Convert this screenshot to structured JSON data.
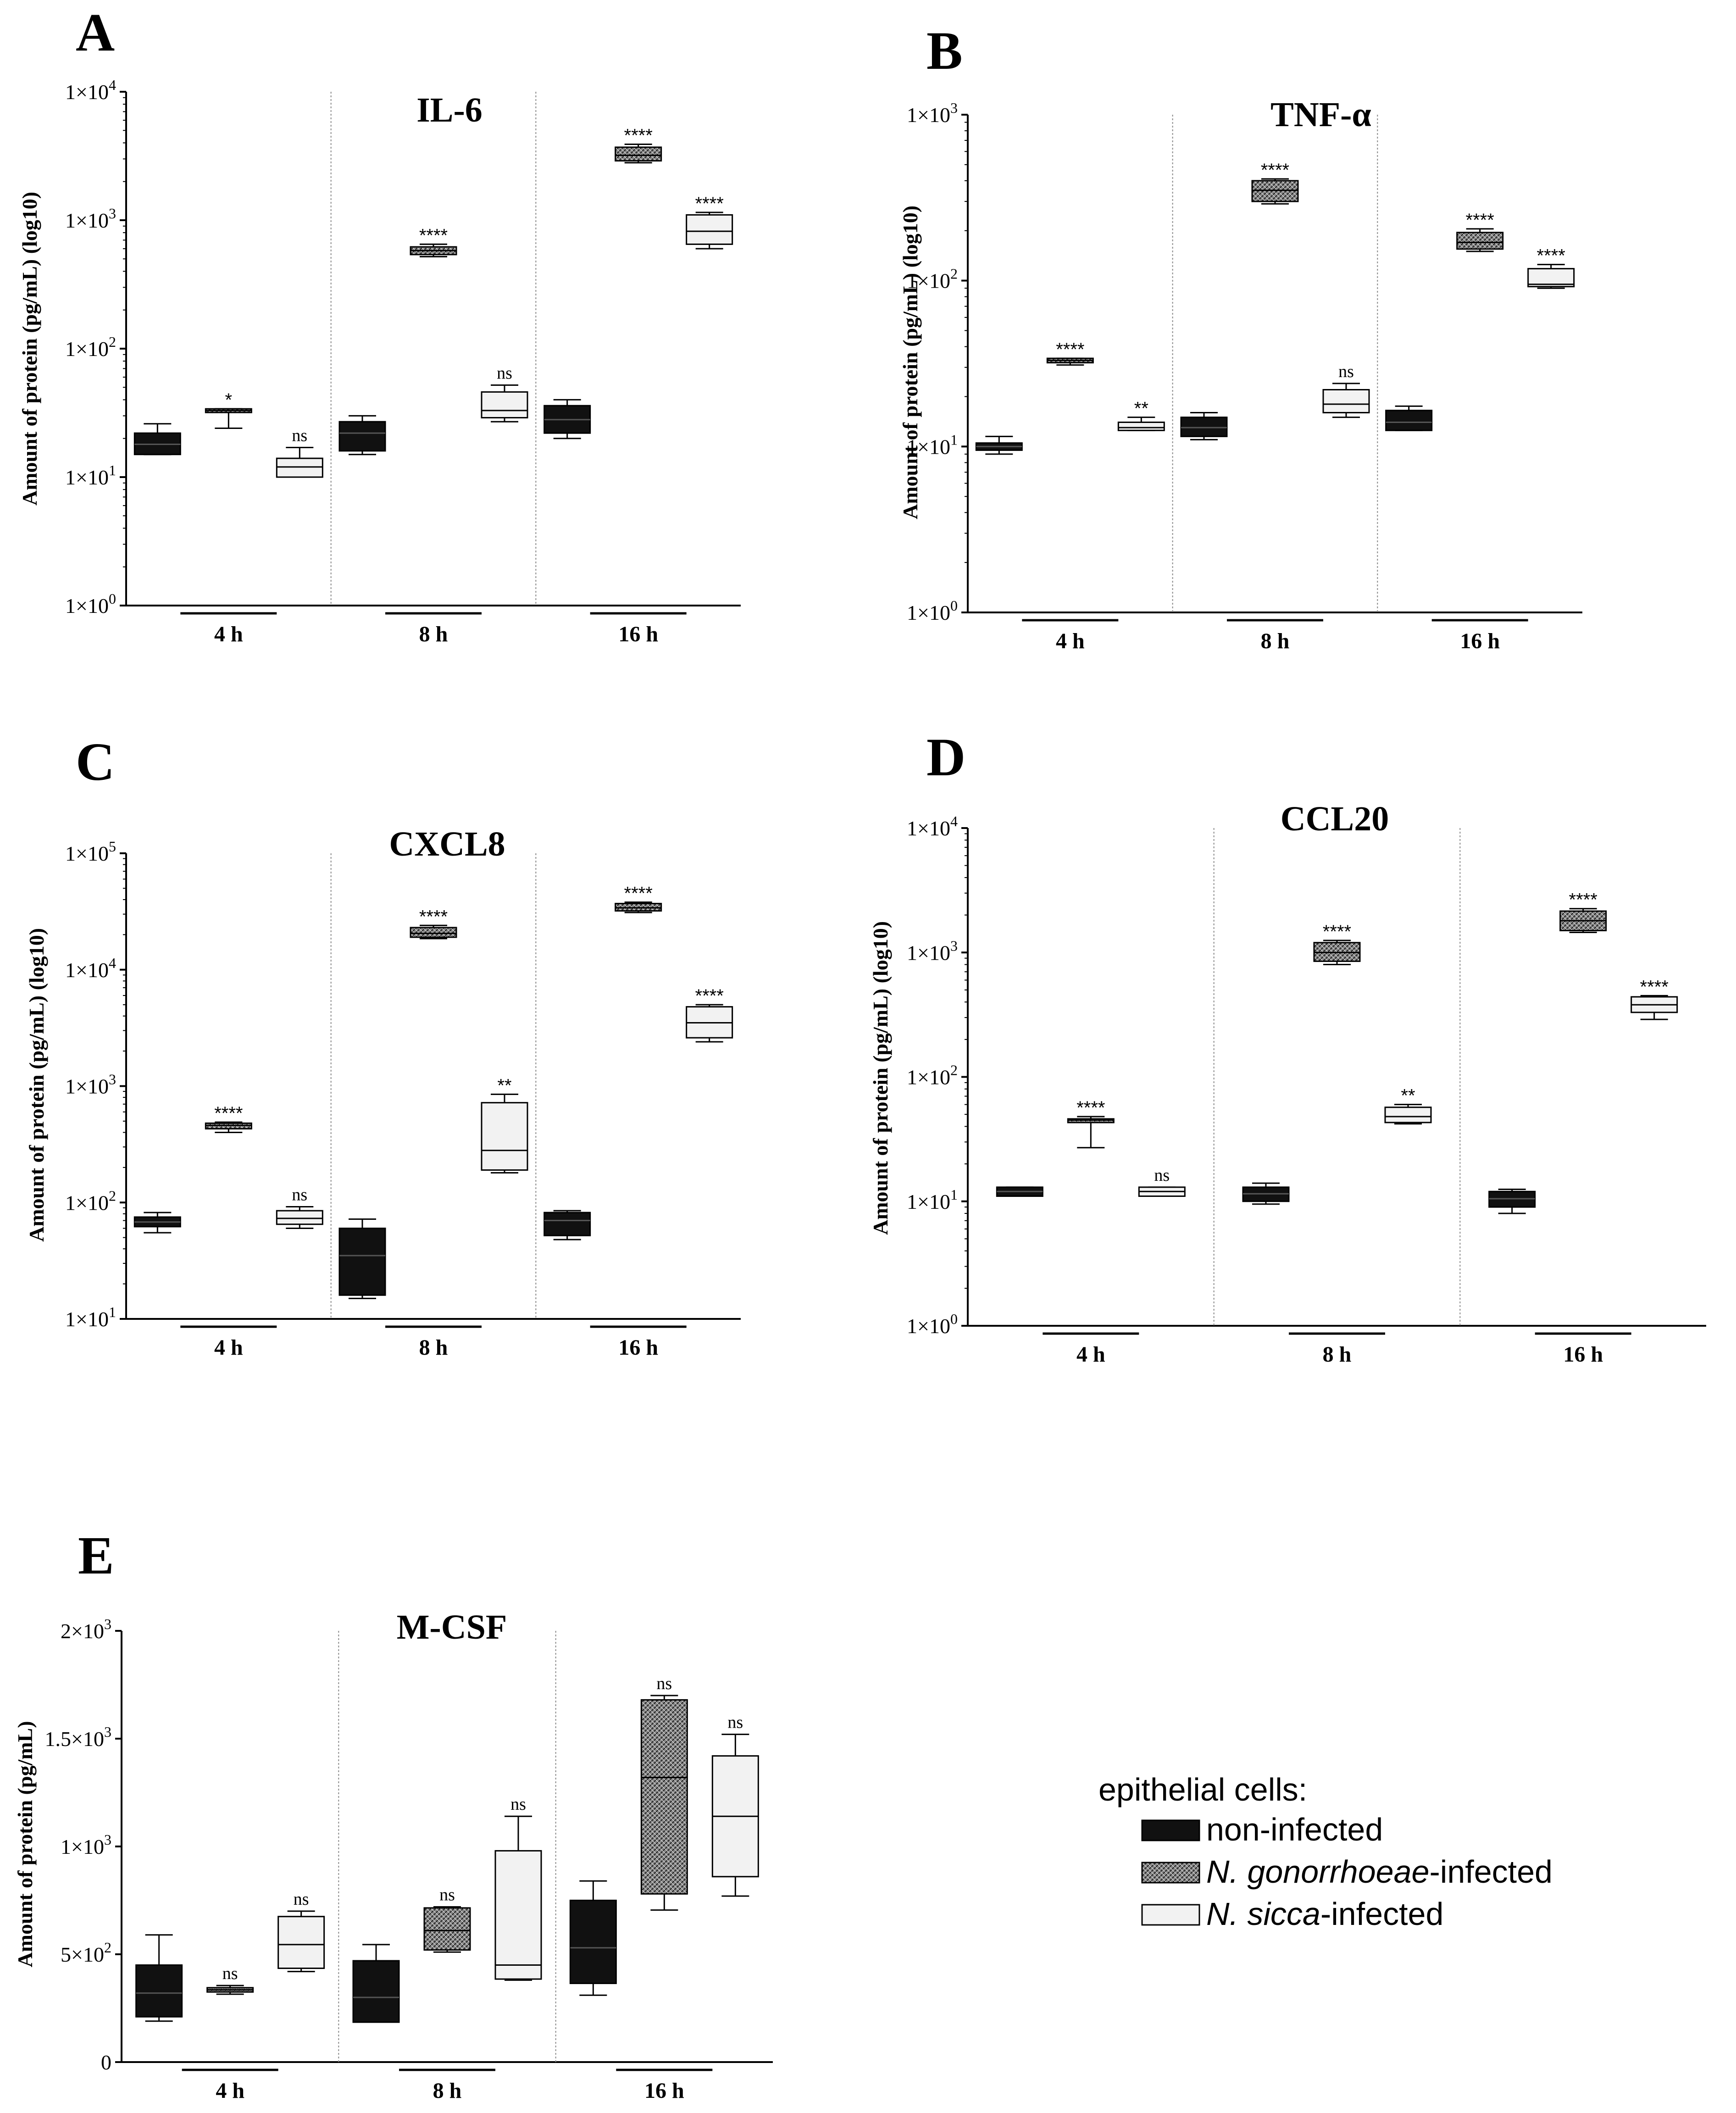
{
  "colors": {
    "non_infected": "#111111",
    "ng_infected": "#777777",
    "ns_infected": "#f2f2f2"
  },
  "legend": {
    "title": "epithelial cells:",
    "items": [
      {
        "key": "non_infected",
        "label": "non-infected",
        "italic_part": ""
      },
      {
        "key": "ng_infected",
        "label": "-infected",
        "italic_part": "N. gonorrhoeae"
      },
      {
        "key": "ns_infected",
        "label": "-infected",
        "italic_part": "N. sicca"
      }
    ]
  },
  "chart_data": [
    {
      "panel": "A",
      "title": "IL-6",
      "type": "box",
      "scale": "log",
      "ylabel": "Amount of protein (pg/mL) (log10)",
      "yticks": [
        {
          "v": 1,
          "base": "1×10",
          "exp": "0"
        },
        {
          "v": 10,
          "base": "1×10",
          "exp": "1"
        },
        {
          "v": 100,
          "base": "1×10",
          "exp": "2"
        },
        {
          "v": 1000,
          "base": "1×10",
          "exp": "3"
        },
        {
          "v": 10000,
          "base": "1×10",
          "exp": "4"
        }
      ],
      "ylim": [
        1,
        10000
      ],
      "groups": [
        {
          "label": "4 h",
          "boxes": [
            {
              "series": "non_infected",
              "min": 15,
              "q1": 15,
              "median": 18,
              "q3": 22,
              "max": 26,
              "sig": ""
            },
            {
              "series": "ng_infected",
              "min": 24,
              "q1": 32,
              "median": 33,
              "q3": 34,
              "max": 34,
              "sig": "*"
            },
            {
              "series": "ns_infected",
              "min": 10,
              "q1": 10,
              "median": 12,
              "q3": 14,
              "max": 17,
              "sig": "ns"
            }
          ]
        },
        {
          "label": "8 h",
          "boxes": [
            {
              "series": "non_infected",
              "min": 15,
              "q1": 16,
              "median": 22,
              "q3": 27,
              "max": 30,
              "sig": ""
            },
            {
              "series": "ng_infected",
              "min": 520,
              "q1": 540,
              "median": 580,
              "q3": 620,
              "max": 650,
              "sig": "****"
            },
            {
              "series": "ns_infected",
              "min": 27,
              "q1": 29,
              "median": 33,
              "q3": 46,
              "max": 52,
              "sig": "ns"
            }
          ]
        },
        {
          "label": "16 h",
          "boxes": [
            {
              "series": "non_infected",
              "min": 20,
              "q1": 22,
              "median": 28,
              "q3": 36,
              "max": 40,
              "sig": ""
            },
            {
              "series": "ng_infected",
              "min": 2800,
              "q1": 2900,
              "median": 3200,
              "q3": 3700,
              "max": 3900,
              "sig": "****"
            },
            {
              "series": "ns_infected",
              "min": 600,
              "q1": 650,
              "median": 820,
              "q3": 1100,
              "max": 1150,
              "sig": "****"
            }
          ]
        }
      ]
    },
    {
      "panel": "B",
      "title": "TNF-α",
      "type": "box",
      "scale": "log",
      "ylabel": "Amount of protein (pg/mL) (log10)",
      "yticks": [
        {
          "v": 1,
          "base": "1×10",
          "exp": "0"
        },
        {
          "v": 10,
          "base": "1×10",
          "exp": "1"
        },
        {
          "v": 100,
          "base": "1×10",
          "exp": "2"
        },
        {
          "v": 1000,
          "base": "1×10",
          "exp": "3"
        }
      ],
      "ylim": [
        1,
        1000
      ],
      "groups": [
        {
          "label": "4 h",
          "boxes": [
            {
              "series": "non_infected",
              "min": 9,
              "q1": 9.5,
              "median": 10,
              "q3": 10.5,
              "max": 11.5,
              "sig": ""
            },
            {
              "series": "ng_infected",
              "min": 31,
              "q1": 32,
              "median": 33,
              "q3": 34,
              "max": 34,
              "sig": "****"
            },
            {
              "series": "ns_infected",
              "min": 12.5,
              "q1": 12.5,
              "median": 13,
              "q3": 14,
              "max": 15,
              "sig": "**"
            }
          ]
        },
        {
          "label": "8 h",
          "boxes": [
            {
              "series": "non_infected",
              "min": 11,
              "q1": 11.5,
              "median": 13,
              "q3": 15,
              "max": 16,
              "sig": ""
            },
            {
              "series": "ng_infected",
              "min": 290,
              "q1": 300,
              "median": 350,
              "q3": 400,
              "max": 410,
              "sig": "****"
            },
            {
              "series": "ns_infected",
              "min": 15,
              "q1": 16,
              "median": 18,
              "q3": 22,
              "max": 24,
              "sig": "ns"
            }
          ]
        },
        {
          "label": "16 h",
          "boxes": [
            {
              "series": "non_infected",
              "min": 12.5,
              "q1": 12.5,
              "median": 14,
              "q3": 16.5,
              "max": 17.5,
              "sig": ""
            },
            {
              "series": "ng_infected",
              "min": 150,
              "q1": 155,
              "median": 170,
              "q3": 195,
              "max": 205,
              "sig": "****"
            },
            {
              "series": "ns_infected",
              "min": 90,
              "q1": 92,
              "median": 95,
              "q3": 118,
              "max": 125,
              "sig": "****"
            }
          ]
        }
      ]
    },
    {
      "panel": "C",
      "title": "CXCL8",
      "type": "box",
      "scale": "log",
      "ylabel": "Amount of protein (pg/mL) (log10)",
      "yticks": [
        {
          "v": 10,
          "base": "1×10",
          "exp": "1"
        },
        {
          "v": 100,
          "base": "1×10",
          "exp": "2"
        },
        {
          "v": 1000,
          "base": "1×10",
          "exp": "3"
        },
        {
          "v": 10000,
          "base": "1×10",
          "exp": "4"
        },
        {
          "v": 100000,
          "base": "1×10",
          "exp": "5"
        }
      ],
      "ylim": [
        10,
        100000
      ],
      "groups": [
        {
          "label": "4 h",
          "boxes": [
            {
              "series": "non_infected",
              "min": 55,
              "q1": 62,
              "median": 68,
              "q3": 75,
              "max": 82,
              "sig": ""
            },
            {
              "series": "ng_infected",
              "min": 400,
              "q1": 430,
              "median": 460,
              "q3": 480,
              "max": 490,
              "sig": "****"
            },
            {
              "series": "ns_infected",
              "min": 60,
              "q1": 65,
              "median": 73,
              "q3": 85,
              "max": 92,
              "sig": "ns"
            }
          ]
        },
        {
          "label": "8 h",
          "boxes": [
            {
              "series": "non_infected",
              "min": 15,
              "q1": 16,
              "median": 35,
              "q3": 60,
              "max": 72,
              "sig": ""
            },
            {
              "series": "ng_infected",
              "min": 18500,
              "q1": 19000,
              "median": 20500,
              "q3": 23000,
              "max": 24000,
              "sig": "****"
            },
            {
              "series": "ns_infected",
              "min": 180,
              "q1": 190,
              "median": 280,
              "q3": 720,
              "max": 850,
              "sig": "**"
            }
          ]
        },
        {
          "label": "16 h",
          "boxes": [
            {
              "series": "non_infected",
              "min": 48,
              "q1": 52,
              "median": 70,
              "q3": 82,
              "max": 85,
              "sig": ""
            },
            {
              "series": "ng_infected",
              "min": 31000,
              "q1": 32000,
              "median": 34000,
              "q3": 37000,
              "max": 38000,
              "sig": "****"
            },
            {
              "series": "ns_infected",
              "min": 2400,
              "q1": 2600,
              "median": 3500,
              "q3": 4800,
              "max": 5000,
              "sig": "****"
            }
          ]
        }
      ]
    },
    {
      "panel": "D",
      "title": "CCL20",
      "type": "box",
      "scale": "log",
      "ylabel": "Amount of protein (pg/mL) (log10)",
      "yticks": [
        {
          "v": 1,
          "base": "1×10",
          "exp": "0"
        },
        {
          "v": 10,
          "base": "1×10",
          "exp": "1"
        },
        {
          "v": 100,
          "base": "1×10",
          "exp": "2"
        },
        {
          "v": 1000,
          "base": "1×10",
          "exp": "3"
        },
        {
          "v": 10000,
          "base": "1×10",
          "exp": "4"
        }
      ],
      "ylim": [
        1,
        10000
      ],
      "groups": [
        {
          "label": "4 h",
          "boxes": [
            {
              "series": "non_infected",
              "min": 11,
              "q1": 11,
              "median": 12,
              "q3": 13,
              "max": 13,
              "sig": ""
            },
            {
              "series": "ng_infected",
              "min": 27,
              "q1": 44,
              "median": 45,
              "q3": 46,
              "max": 48,
              "sig": "****"
            },
            {
              "series": "ns_infected",
              "min": 11,
              "q1": 11,
              "median": 12,
              "q3": 13,
              "max": 13,
              "sig": "ns"
            }
          ]
        },
        {
          "label": "8 h",
          "boxes": [
            {
              "series": "non_infected",
              "min": 9.5,
              "q1": 10,
              "median": 11.5,
              "q3": 13,
              "max": 14,
              "sig": ""
            },
            {
              "series": "ng_infected",
              "min": 800,
              "q1": 850,
              "median": 1000,
              "q3": 1200,
              "max": 1250,
              "sig": "****"
            },
            {
              "series": "ns_infected",
              "min": 42,
              "q1": 43,
              "median": 48,
              "q3": 57,
              "max": 60,
              "sig": "**"
            }
          ]
        },
        {
          "label": "16 h",
          "boxes": [
            {
              "series": "non_infected",
              "min": 8,
              "q1": 9,
              "median": 10.5,
              "q3": 12,
              "max": 12.5,
              "sig": ""
            },
            {
              "series": "ng_infected",
              "min": 1450,
              "q1": 1500,
              "median": 1800,
              "q3": 2150,
              "max": 2250,
              "sig": "****"
            },
            {
              "series": "ns_infected",
              "min": 290,
              "q1": 330,
              "median": 380,
              "q3": 440,
              "max": 450,
              "sig": "****"
            }
          ]
        }
      ]
    },
    {
      "panel": "E",
      "title": "M-CSF",
      "type": "box",
      "scale": "linear",
      "ylabel": "Amount of protein (pg/mL)",
      "yticks": [
        {
          "v": 0,
          "base": "0",
          "exp": ""
        },
        {
          "v": 500,
          "base": "5×10",
          "exp": "2"
        },
        {
          "v": 1000,
          "base": "1×10",
          "exp": "3"
        },
        {
          "v": 1500,
          "base": "1.5×10",
          "exp": "3"
        },
        {
          "v": 2000,
          "base": "2×10",
          "exp": "3"
        }
      ],
      "ylim": [
        0,
        2000
      ],
      "groups": [
        {
          "label": "4 h",
          "boxes": [
            {
              "series": "non_infected",
              "min": 190,
              "q1": 210,
              "median": 320,
              "q3": 450,
              "max": 590,
              "sig": ""
            },
            {
              "series": "ng_infected",
              "min": 315,
              "q1": 325,
              "median": 335,
              "q3": 345,
              "max": 355,
              "sig": "ns"
            },
            {
              "series": "ns_infected",
              "min": 420,
              "q1": 435,
              "median": 545,
              "q3": 675,
              "max": 700,
              "sig": "ns"
            }
          ]
        },
        {
          "label": "8 h",
          "boxes": [
            {
              "series": "non_infected",
              "min": 185,
              "q1": 185,
              "median": 300,
              "q3": 470,
              "max": 545,
              "sig": ""
            },
            {
              "series": "ng_infected",
              "min": 510,
              "q1": 520,
              "median": 610,
              "q3": 715,
              "max": 720,
              "sig": "ns"
            },
            {
              "series": "ns_infected",
              "min": 380,
              "q1": 385,
              "median": 450,
              "q3": 980,
              "max": 1140,
              "sig": "ns"
            }
          ]
        },
        {
          "label": "16 h",
          "boxes": [
            {
              "series": "non_infected",
              "min": 310,
              "q1": 365,
              "median": 530,
              "q3": 750,
              "max": 840,
              "sig": ""
            },
            {
              "series": "ng_infected",
              "min": 705,
              "q1": 780,
              "median": 1320,
              "q3": 1680,
              "max": 1700,
              "sig": "ns"
            },
            {
              "series": "ns_infected",
              "min": 770,
              "q1": 860,
              "median": 1140,
              "q3": 1420,
              "max": 1520,
              "sig": "ns"
            }
          ]
        }
      ]
    }
  ]
}
